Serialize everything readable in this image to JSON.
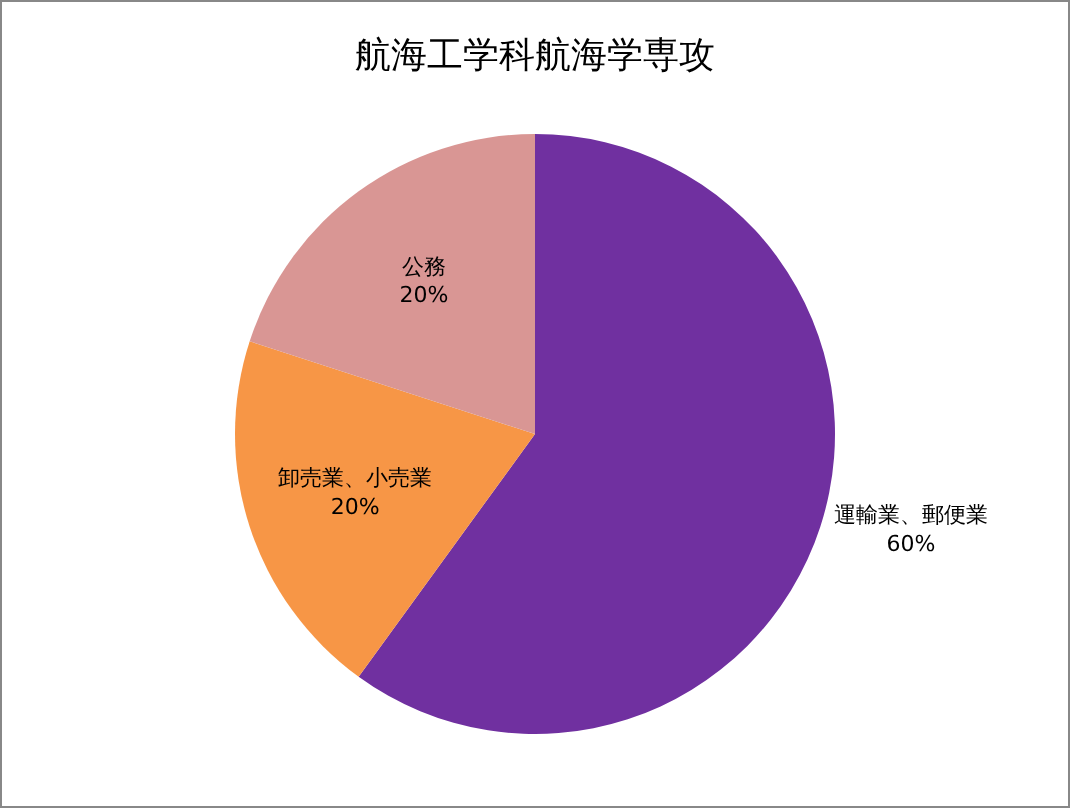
{
  "chart_data": {
    "type": "pie",
    "title": "航海工学科航海学専攻",
    "categories": [
      "運輸業、郵便業",
      "卸売業、小売業",
      "公務"
    ],
    "values": [
      60,
      20,
      20
    ],
    "value_labels": [
      "60%",
      "20%",
      "20%"
    ],
    "colors": [
      "#7030a0",
      "#f79646",
      "#d99694"
    ],
    "legend": false
  }
}
